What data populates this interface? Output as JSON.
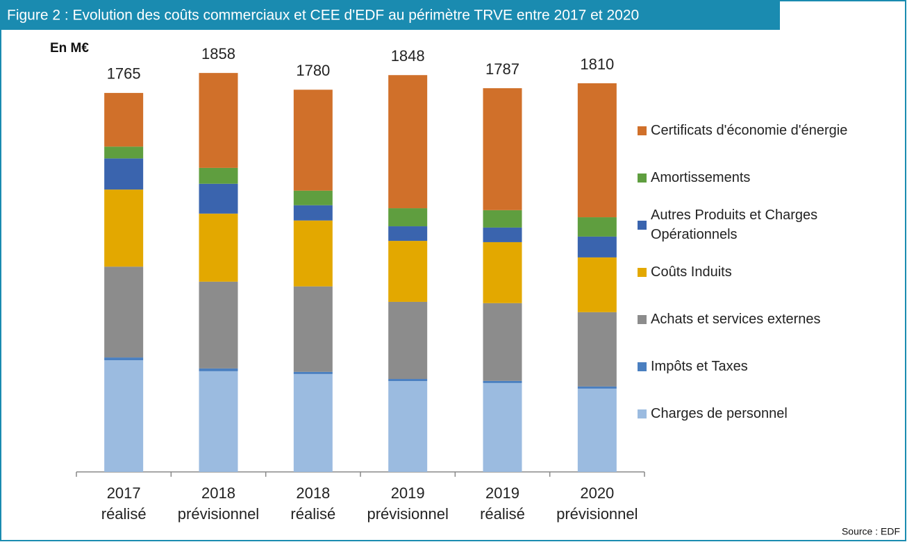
{
  "chart_data": {
    "type": "stacked_bar",
    "title": "Figure 2 : Evolution des coûts commerciaux et CEE d'EDF au périmètre TRVE entre 2017 et 2020",
    "unit_label": "En M€",
    "source": "Source : EDF",
    "categories": [
      [
        "2017",
        "réalisé"
      ],
      [
        "2018",
        "prévisionnel"
      ],
      [
        "2018",
        "réalisé"
      ],
      [
        "2019",
        "prévisionnel"
      ],
      [
        "2019",
        "réalisé"
      ],
      [
        "2020",
        "prévisionnel"
      ]
    ],
    "totals": [
      1765,
      1858,
      1780,
      1848,
      1787,
      1810
    ],
    "series": [
      {
        "name": "Charges de personnel",
        "color": "#9bbbe0",
        "values": [
          520,
          469,
          456,
          423,
          414,
          388
        ]
      },
      {
        "name": "Impôts et Taxes",
        "color": "#4a7fc0",
        "values": [
          13,
          13,
          10,
          10,
          10,
          10
        ]
      },
      {
        "name": "Achats et services externes",
        "color": "#8c8c8c",
        "values": [
          423,
          404,
          398,
          359,
          362,
          346
        ]
      },
      {
        "name": "Coûts Induits",
        "color": "#e3a800",
        "values": [
          359,
          317,
          307,
          284,
          284,
          255
        ]
      },
      {
        "name": "Autres Produits et Charges Opérationnels",
        "color": "#3a64ae",
        "values": [
          145,
          139,
          71,
          68,
          68,
          97
        ]
      },
      {
        "name": "Amortissements",
        "color": "#5f9e3f",
        "values": [
          55,
          74,
          68,
          84,
          81,
          90
        ]
      },
      {
        "name": "Certificats d'économie d'énergie",
        "color": "#d0702a",
        "values": [
          250,
          442,
          470,
          620,
          568,
          624
        ]
      }
    ]
  }
}
